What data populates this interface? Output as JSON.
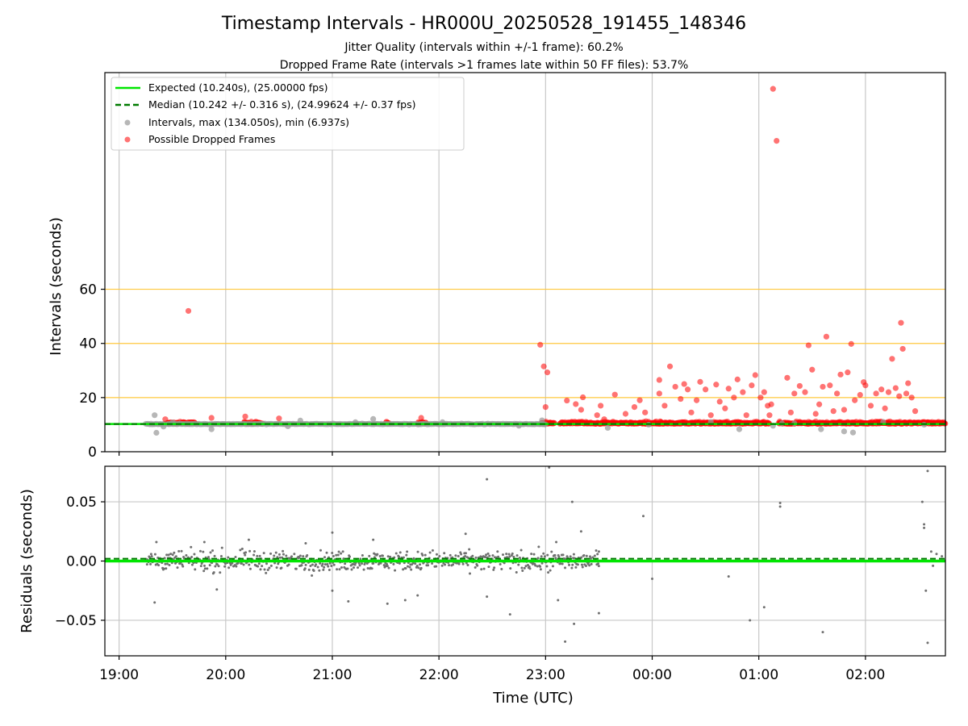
{
  "figure": {
    "title": "Timestamp Intervals - HR000U_20250528_191455_148346",
    "subtitle1": "Jitter Quality (intervals within +/-1 frame): 60.2%",
    "subtitle2": "Dropped Frame Rate (intervals >1 frames late within 50 FF files): 53.7%"
  },
  "colors": {
    "expected": "#00e600",
    "median": "#007a00",
    "intervals": "#999999",
    "dropped": "#ff0000",
    "ref_lines": "#ffc83c",
    "grid": "#c8c8c8",
    "residuals": "#707070"
  },
  "chart_data": [
    {
      "type": "scatter",
      "name": "intervals",
      "xlabel": "",
      "ylabel": "Intervals (seconds)",
      "xlim": [
        "18:52",
        "02:45"
      ],
      "ylim": [
        0,
        140
      ],
      "x_ticks": [
        "19:00",
        "20:00",
        "21:00",
        "22:00",
        "23:00",
        "00:00",
        "01:00",
        "02:00"
      ],
      "y_ticks": [
        0,
        20,
        40,
        60
      ],
      "grid": "x only",
      "reference_lines": [
        20,
        40,
        60
      ],
      "legend_position": "top-left",
      "legend": [
        "Expected (10.240s), (25.00000 fps)",
        "Median (10.242 +/- 0.316 s), (24.99624 +/- 0.37 fps)",
        "Intervals, max (134.050s), min (6.937s)",
        "Possible Dropped Frames"
      ],
      "expected_interval": 10.24,
      "median_interval": 10.242,
      "series": [
        {
          "name": "Intervals",
          "points": [
            [
              "19:20",
              13.5
            ],
            [
              "19:21",
              7.0
            ],
            [
              "19:25",
              9.3
            ],
            [
              "19:30",
              10.8
            ],
            [
              "19:52",
              8.3
            ],
            [
              "20:35",
              9.4
            ],
            [
              "20:42",
              11.5
            ],
            [
              "21:13",
              10.9
            ],
            [
              "21:23",
              12.1
            ],
            [
              "22:02",
              10.9
            ],
            [
              "22:45",
              9.6
            ],
            [
              "22:58",
              11.6
            ],
            [
              "23:35",
              8.8
            ],
            [
              "23:58",
              10.0
            ],
            [
              "00:33",
              11.0
            ],
            [
              "00:49",
              8.3
            ],
            [
              "01:08",
              9.6
            ],
            [
              "01:13",
              10.5
            ],
            [
              "01:20",
              10.5
            ],
            [
              "01:35",
              8.3
            ],
            [
              "01:48",
              7.5
            ],
            [
              "01:53",
              7.1
            ],
            [
              "02:10",
              11.0
            ],
            [
              "02:33",
              10.0
            ]
          ]
        },
        {
          "name": "Possible Dropped Frames",
          "points": [
            [
              "19:39",
              52.0
            ],
            [
              "19:26",
              12.0
            ],
            [
              "19:52",
              12.5
            ],
            [
              "20:11",
              13.0
            ],
            [
              "20:30",
              12.3
            ],
            [
              "21:50",
              12.5
            ],
            [
              "22:57",
              39.5
            ],
            [
              "22:59",
              31.5
            ],
            [
              "23:01",
              29.3
            ],
            [
              "23:00",
              16.5
            ],
            [
              "23:12",
              18.9
            ],
            [
              "23:17",
              17.6
            ],
            [
              "23:20",
              15.5
            ],
            [
              "23:21",
              20.1
            ],
            [
              "23:29",
              13.5
            ],
            [
              "23:31",
              17.0
            ],
            [
              "23:33",
              12.0
            ],
            [
              "23:39",
              21.1
            ],
            [
              "23:45",
              14.0
            ],
            [
              "23:50",
              16.5
            ],
            [
              "23:53",
              19.0
            ],
            [
              "23:56",
              14.5
            ],
            [
              "00:04",
              21.5
            ],
            [
              "00:04",
              26.5
            ],
            [
              "00:07",
              17.0
            ],
            [
              "00:10",
              31.5
            ],
            [
              "00:13",
              24.0
            ],
            [
              "00:16",
              19.5
            ],
            [
              "00:18",
              25.0
            ],
            [
              "00:20",
              23.0
            ],
            [
              "00:22",
              14.5
            ],
            [
              "00:25",
              19.0
            ],
            [
              "00:27",
              25.8
            ],
            [
              "00:30",
              23.0
            ],
            [
              "00:33",
              13.5
            ],
            [
              "00:36",
              24.8
            ],
            [
              "00:38",
              18.5
            ],
            [
              "00:41",
              16.0
            ],
            [
              "00:43",
              23.3
            ],
            [
              "00:46",
              20.0
            ],
            [
              "00:48",
              26.7
            ],
            [
              "00:51",
              22.0
            ],
            [
              "00:53",
              13.5
            ],
            [
              "00:56",
              24.5
            ],
            [
              "00:58",
              28.3
            ],
            [
              "01:01",
              20.0
            ],
            [
              "01:03",
              22.0
            ],
            [
              "01:05",
              17.0
            ],
            [
              "01:06",
              13.5
            ],
            [
              "01:07",
              17.5
            ],
            [
              "01:08",
              134.0
            ],
            [
              "01:10",
              114.8
            ],
            [
              "01:16",
              27.3
            ],
            [
              "01:18",
              14.5
            ],
            [
              "01:20",
              21.5
            ],
            [
              "01:23",
              24.3
            ],
            [
              "01:26",
              22.0
            ],
            [
              "01:28",
              39.3
            ],
            [
              "01:30",
              30.3
            ],
            [
              "01:32",
              14.0
            ],
            [
              "01:34",
              17.5
            ],
            [
              "01:36",
              24.0
            ],
            [
              "01:38",
              42.5
            ],
            [
              "01:40",
              24.5
            ],
            [
              "01:42",
              15.0
            ],
            [
              "01:44",
              21.5
            ],
            [
              "01:46",
              28.5
            ],
            [
              "01:48",
              15.5
            ],
            [
              "01:50",
              29.3
            ],
            [
              "01:52",
              39.8
            ],
            [
              "01:54",
              19.0
            ],
            [
              "01:57",
              21.0
            ],
            [
              "01:59",
              25.7
            ],
            [
              "02:00",
              24.5
            ],
            [
              "02:03",
              17.0
            ],
            [
              "02:06",
              21.5
            ],
            [
              "02:09",
              23.0
            ],
            [
              "02:11",
              16.0
            ],
            [
              "02:13",
              22.0
            ],
            [
              "02:15",
              34.3
            ],
            [
              "02:17",
              23.5
            ],
            [
              "02:19",
              20.5
            ],
            [
              "02:20",
              47.6
            ],
            [
              "02:21",
              38.0
            ],
            [
              "02:23",
              21.5
            ],
            [
              "02:24",
              25.3
            ],
            [
              "02:26",
              20.0
            ],
            [
              "02:28",
              15.0
            ]
          ],
          "dense_band_ranges_near_10_2s": [
            [
              "19:27",
              "19:43"
            ],
            [
              "20:10",
              "20:21"
            ],
            [
              "21:30",
              "21:32"
            ],
            [
              "21:48",
              "21:53"
            ],
            [
              "22:57",
              "23:05"
            ],
            [
              "23:08",
              "01:06"
            ],
            [
              "01:11",
              "02:45"
            ]
          ]
        }
      ]
    },
    {
      "type": "scatter",
      "name": "residuals",
      "xlabel": "Time (UTC)",
      "ylabel": "Residuals (seconds)",
      "xlim": [
        "18:52",
        "02:45"
      ],
      "ylim": [
        -0.08,
        0.08
      ],
      "x_ticks": [
        "19:00",
        "20:00",
        "21:00",
        "22:00",
        "23:00",
        "00:00",
        "01:00",
        "02:00"
      ],
      "y_ticks": [
        "0.05",
        "0.00",
        "−0.05"
      ],
      "grid": "both",
      "expected_residual": 0.0,
      "median_residual": 0.002,
      "dense_range": [
        "19:15",
        "23:30"
      ],
      "typical_spread": 0.008,
      "series": [
        {
          "name": "Residuals",
          "points": [
            [
              "19:20",
              -0.035
            ],
            [
              "19:21",
              0.016
            ],
            [
              "19:48",
              0.016
            ],
            [
              "19:55",
              -0.024
            ],
            [
              "20:13",
              0.018
            ],
            [
              "20:45",
              0.015
            ],
            [
              "21:00",
              0.024
            ],
            [
              "21:00",
              -0.025
            ],
            [
              "21:09",
              -0.034
            ],
            [
              "21:23",
              0.018
            ],
            [
              "21:31",
              -0.036
            ],
            [
              "21:41",
              -0.033
            ],
            [
              "21:48",
              -0.029
            ],
            [
              "22:15",
              0.023
            ],
            [
              "22:27",
              -0.03
            ],
            [
              "22:27",
              0.069
            ],
            [
              "22:40",
              -0.045
            ],
            [
              "23:02",
              0.079
            ],
            [
              "23:06",
              0.016
            ],
            [
              "23:07",
              -0.033
            ],
            [
              "23:11",
              -0.068
            ],
            [
              "23:15",
              0.05
            ],
            [
              "23:16",
              -0.053
            ],
            [
              "23:20",
              0.025
            ],
            [
              "23:30",
              -0.044
            ],
            [
              "23:30",
              0.008
            ],
            [
              "23:55",
              0.038
            ],
            [
              "00:00",
              -0.015
            ],
            [
              "00:43",
              -0.013
            ],
            [
              "00:55",
              -0.05
            ],
            [
              "01:03",
              -0.039
            ],
            [
              "01:12",
              0.049
            ],
            [
              "01:12",
              0.046
            ],
            [
              "01:36",
              -0.06
            ],
            [
              "02:32",
              0.05
            ],
            [
              "02:33",
              0.031
            ],
            [
              "02:33",
              0.028
            ],
            [
              "02:34",
              -0.025
            ],
            [
              "02:35",
              0.076
            ],
            [
              "02:35",
              -0.069
            ],
            [
              "02:37",
              0.008
            ],
            [
              "02:38",
              -0.004
            ],
            [
              "02:40",
              0.006
            ],
            [
              "02:43",
              0.004
            ]
          ]
        }
      ]
    }
  ]
}
